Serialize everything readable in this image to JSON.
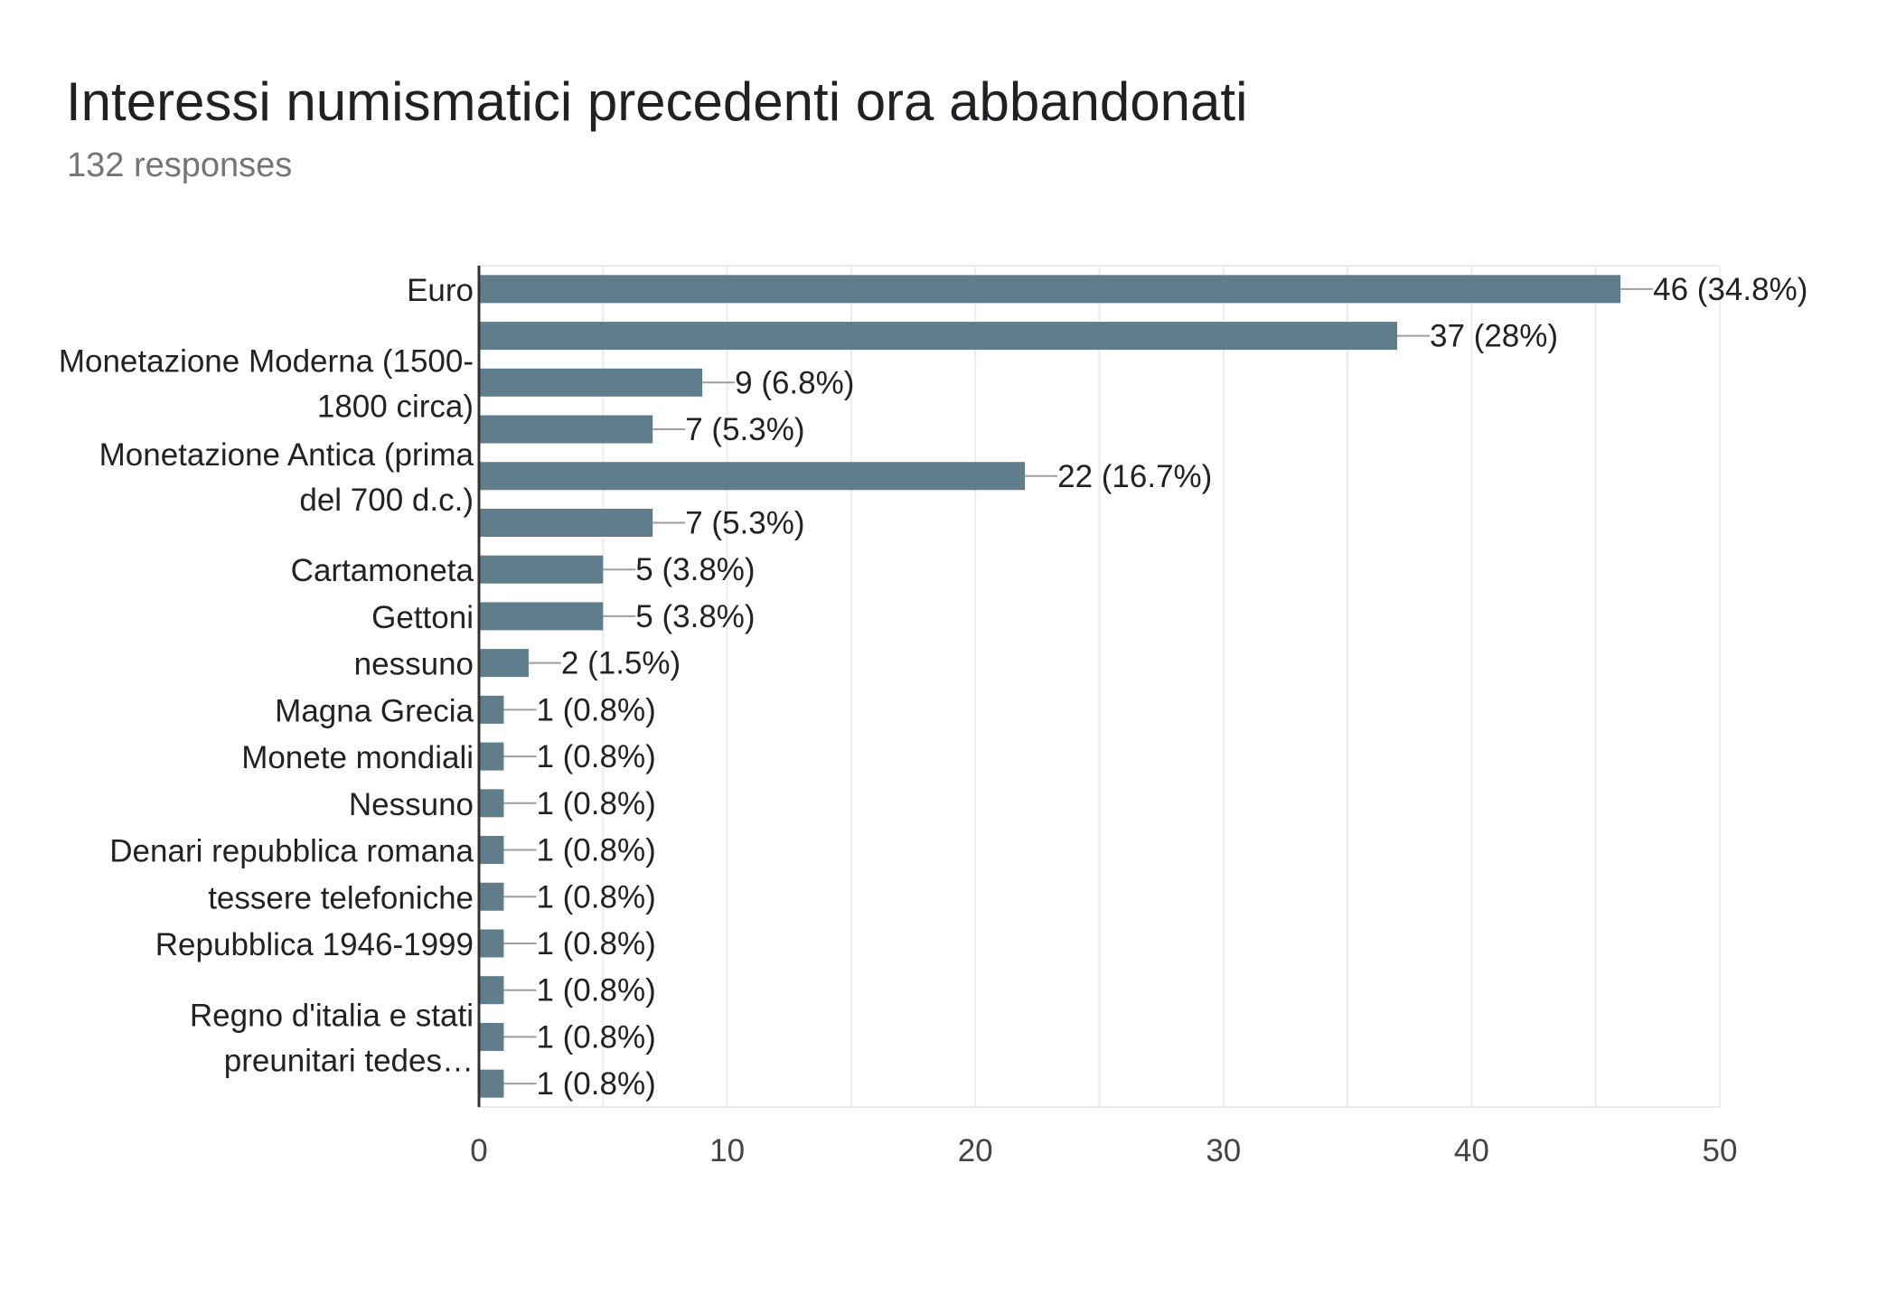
{
  "header": {
    "title": "Interessi numismatici precedenti ora abbandonati",
    "subtitle": "132 responses"
  },
  "colors": {
    "bar": "#607d8b",
    "grid": "#ebebeb",
    "axis": "#333333",
    "label": "#222222",
    "tick": "#444444",
    "leader": "#9e9e9e"
  },
  "chart_data": {
    "type": "bar",
    "orientation": "horizontal",
    "title": "Interessi numismatici precedenti ora abbandonati",
    "subtitle": "132 responses",
    "category_labels": [
      {
        "text": [
          "Euro"
        ],
        "bars": [
          0
        ]
      },
      {
        "text": [
          "Monetazione Moderna (1500-",
          "1800 circa)"
        ],
        "bars": [
          1,
          2,
          3
        ]
      },
      {
        "text": [
          "Monetazione Antica (prima",
          "del 700 d.c.)"
        ],
        "bars": [
          3,
          4,
          5
        ]
      },
      {
        "text": [
          "Cartamoneta"
        ],
        "bars": [
          6
        ]
      },
      {
        "text": [
          "Gettoni"
        ],
        "bars": [
          7
        ]
      },
      {
        "text": [
          "nessuno"
        ],
        "bars": [
          8
        ]
      },
      {
        "text": [
          "Magna Grecia"
        ],
        "bars": [
          9
        ]
      },
      {
        "text": [
          "Monete mondiali"
        ],
        "bars": [
          10
        ]
      },
      {
        "text": [
          "Nessuno"
        ],
        "bars": [
          11
        ]
      },
      {
        "text": [
          "Denari repubblica romana"
        ],
        "bars": [
          12
        ]
      },
      {
        "text": [
          "tessere telefoniche"
        ],
        "bars": [
          13
        ]
      },
      {
        "text": [
          "Repubblica 1946-1999"
        ],
        "bars": [
          14
        ]
      },
      {
        "text": [
          "Regno d'italia e stati",
          "preunitari tedes…"
        ],
        "bars": [
          15,
          16,
          17
        ]
      }
    ],
    "values": [
      46,
      37,
      9,
      7,
      22,
      7,
      5,
      5,
      2,
      1,
      1,
      1,
      1,
      1,
      1,
      1,
      1,
      1
    ],
    "data_labels": [
      "46 (34.8%)",
      "37 (28%)",
      "9 (6.8%)",
      "7 (5.3%)",
      "22 (16.7%)",
      "7 (5.3%)",
      "5 (3.8%)",
      "5 (3.8%)",
      "2 (1.5%)",
      "1 (0.8%)",
      "1 (0.8%)",
      "1 (0.8%)",
      "1 (0.8%)",
      "1 (0.8%)",
      "1 (0.8%)",
      "1 (0.8%)",
      "1 (0.8%)",
      "1 (0.8%)"
    ],
    "xlim": [
      0,
      50
    ],
    "x_ticks": [
      "0",
      "10",
      "20",
      "30",
      "40",
      "50"
    ],
    "x_tick_values": [
      0,
      10,
      20,
      30,
      40,
      50
    ],
    "grid": true,
    "legend": "none"
  }
}
